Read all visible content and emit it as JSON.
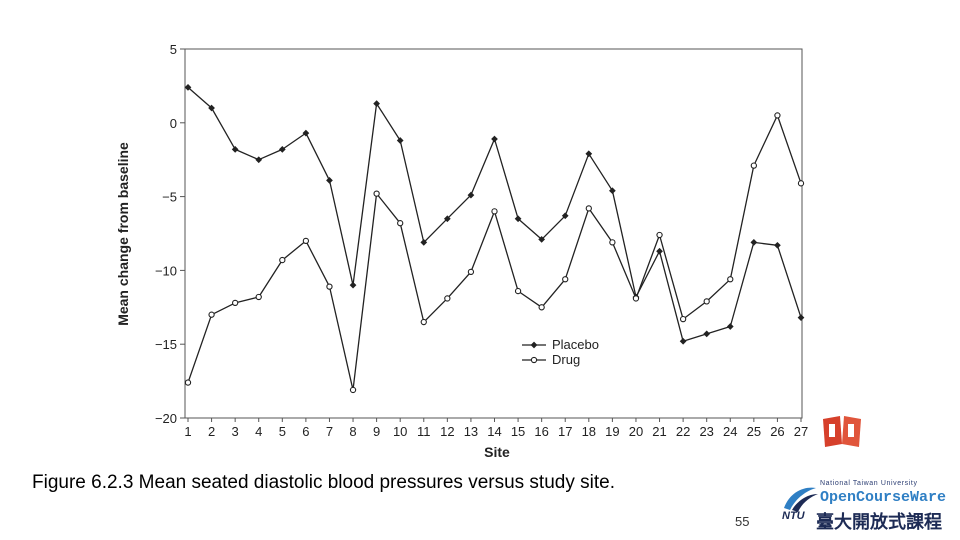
{
  "chart_data": {
    "type": "line",
    "title": "",
    "xlabel": "Site",
    "ylabel": "Mean change from baseline",
    "ylim": [
      -20,
      5
    ],
    "yticks": [
      5,
      0,
      -5,
      -10,
      -15,
      -20
    ],
    "ytick_labels": [
      "5",
      "0",
      "−5",
      "−10",
      "−15",
      "−20"
    ],
    "categories": [
      "1",
      "2",
      "3",
      "4",
      "5",
      "6",
      "7",
      "8",
      "9",
      "10",
      "11",
      "12",
      "13",
      "14",
      "15",
      "16",
      "17",
      "18",
      "19",
      "20",
      "21",
      "22",
      "23",
      "24",
      "25",
      "26",
      "27"
    ],
    "series": [
      {
        "name": "Placebo",
        "marker": "filled-diamond",
        "values": [
          2.4,
          1.0,
          -1.8,
          -2.5,
          -1.8,
          -0.7,
          -3.9,
          -11.0,
          1.3,
          -1.2,
          -8.1,
          -6.5,
          -4.9,
          -1.1,
          -6.5,
          -7.9,
          -6.3,
          -2.1,
          -4.6,
          -11.8,
          -8.7,
          -14.8,
          -14.3,
          -13.8,
          -8.1,
          -8.3,
          -13.2
        ]
      },
      {
        "name": "Drug",
        "marker": "open-circle",
        "values": [
          -17.6,
          -13.0,
          -12.2,
          -11.8,
          -9.3,
          -8.0,
          -11.1,
          -18.1,
          -4.8,
          -6.8,
          -13.5,
          -11.9,
          -10.1,
          -6.0,
          -11.4,
          -12.5,
          -10.6,
          -5.8,
          -8.1,
          -11.9,
          -7.6,
          -13.3,
          -12.1,
          -10.6,
          -2.9,
          0.5,
          -4.1
        ]
      }
    ],
    "legend": [
      "Placebo",
      "Drug"
    ],
    "legend_position": "lower-right",
    "grid": false
  },
  "caption": "Figure 6.2.3 Mean seated diastolic blood pressures versus study site.",
  "page_number": "55",
  "logo": {
    "line1": "National Taiwan University",
    "line2": "OpenCourseWare",
    "line3": "臺大開放式課程",
    "mark": "NTU"
  },
  "colors": {
    "line": "#222222",
    "book_icon": "#d6402b",
    "logo_blue": "#2f7fc4",
    "logo_navy": "#1d2b55"
  }
}
